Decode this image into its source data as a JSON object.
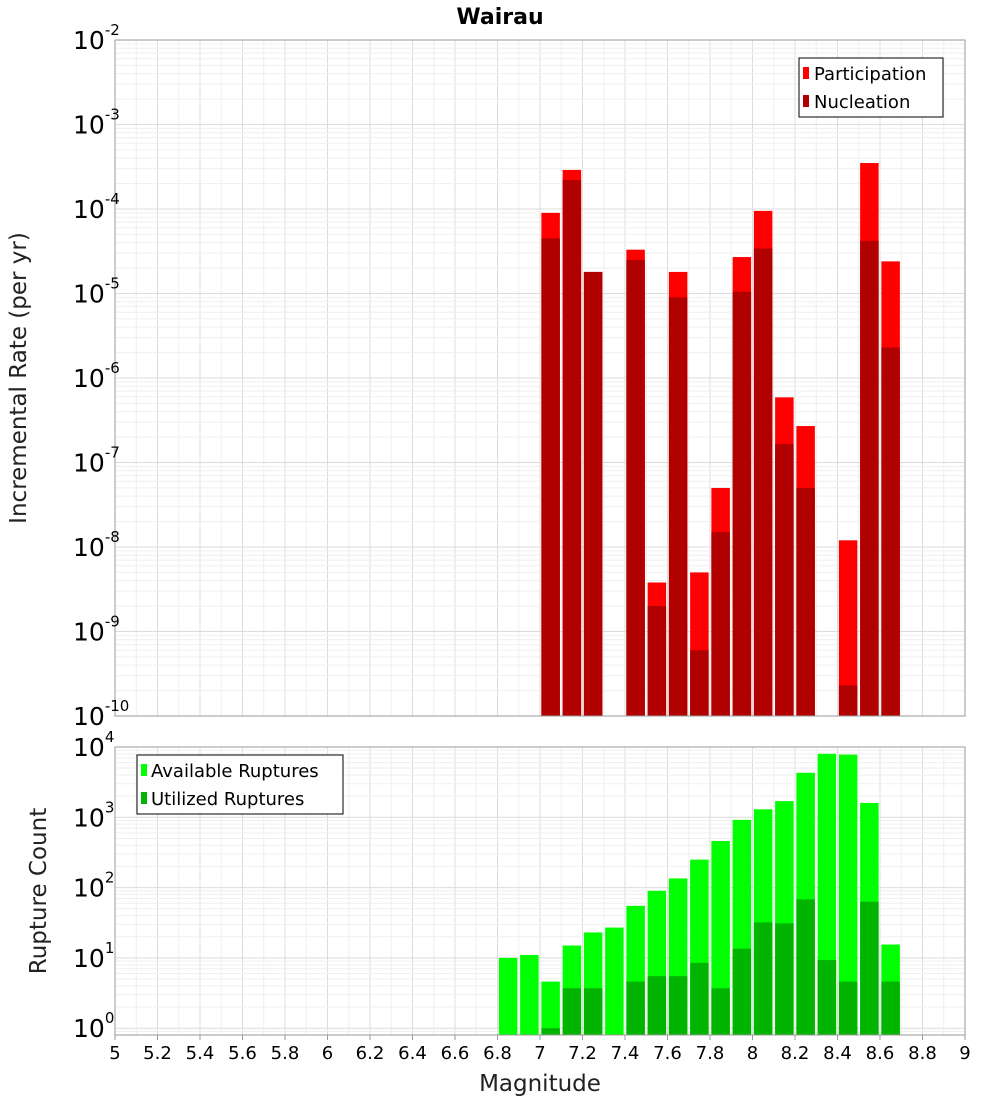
{
  "chart_data": [
    {
      "type": "bar",
      "title": "Wairau",
      "xlabel": "",
      "ylabel": "Incremental Rate (per yr)",
      "yscale": "log",
      "xlim": [
        5,
        9
      ],
      "ylim": [
        1e-10,
        0.01
      ],
      "x": [
        7.05,
        7.15,
        7.25,
        7.35,
        7.45,
        7.55,
        7.65,
        7.75,
        7.85,
        7.95,
        8.05,
        8.15,
        8.25,
        8.35,
        8.45,
        8.55,
        8.65
      ],
      "series": [
        {
          "name": "Participation",
          "color": "#ff0000",
          "values": [
            9e-05,
            0.00029,
            1.8e-05,
            null,
            3.3e-05,
            3.8e-09,
            1.8e-05,
            5e-09,
            5e-08,
            2.7e-05,
            9.5e-05,
            5.9e-07,
            2.7e-07,
            null,
            1.2e-08,
            0.00035,
            2.4e-05
          ]
        },
        {
          "name": "Nucleation",
          "color": "#b00000",
          "values": [
            4.5e-05,
            0.00022,
            1.8e-05,
            null,
            2.5e-05,
            2e-09,
            9e-06,
            6e-10,
            1.5e-08,
            1.05e-05,
            3.4e-05,
            1.65e-07,
            5e-08,
            null,
            2.3e-10,
            4.2e-05,
            2.3e-06
          ]
        }
      ],
      "yticks": [
        {
          "base": "10",
          "exp": "-10"
        },
        {
          "base": "10",
          "exp": "-9"
        },
        {
          "base": "10",
          "exp": "-8"
        },
        {
          "base": "10",
          "exp": "-7"
        },
        {
          "base": "10",
          "exp": "-6"
        },
        {
          "base": "10",
          "exp": "-5"
        },
        {
          "base": "10",
          "exp": "-4"
        },
        {
          "base": "10",
          "exp": "-3"
        },
        {
          "base": "10",
          "exp": "-2"
        }
      ],
      "legend": {
        "placement": "top-right"
      },
      "grid": true
    },
    {
      "type": "bar",
      "xlabel": "Magnitude",
      "ylabel": "Rupture Count",
      "yscale": "log",
      "xlim": [
        5,
        9
      ],
      "ylim": [
        0.8,
        10000
      ],
      "x": [
        6.85,
        6.95,
        7.05,
        7.15,
        7.25,
        7.35,
        7.45,
        7.55,
        7.65,
        7.75,
        7.85,
        7.95,
        8.05,
        8.15,
        8.25,
        8.35,
        8.45,
        8.55,
        8.65
      ],
      "series": [
        {
          "name": "Available Ruptures",
          "color": "#00ff00",
          "values": [
            10,
            11,
            4.6,
            15,
            23,
            27,
            55,
            90,
            135,
            250,
            460,
            920,
            1300,
            1700,
            4300,
            8000,
            7800,
            1600,
            15.5
          ]
        },
        {
          "name": "Utilized Ruptures",
          "color": "#00b400",
          "values": [
            null,
            null,
            1,
            3.7,
            3.7,
            null,
            4.6,
            5.5,
            5.5,
            8.5,
            3.7,
            13.5,
            32,
            31,
            68,
            9.3,
            4.6,
            63,
            4.6
          ]
        }
      ],
      "xticks": [
        "5",
        "5.2",
        "5.4",
        "5.6",
        "5.8",
        "6",
        "6.2",
        "6.4",
        "6.6",
        "6.8",
        "7",
        "7.2",
        "7.4",
        "7.6",
        "7.8",
        "8",
        "8.2",
        "8.4",
        "8.6",
        "8.8",
        "9"
      ],
      "yticks": [
        {
          "base": "10",
          "exp": "0"
        },
        {
          "base": "10",
          "exp": "1"
        },
        {
          "base": "10",
          "exp": "2"
        },
        {
          "base": "10",
          "exp": "3"
        },
        {
          "base": "10",
          "exp": "4"
        }
      ],
      "legend": {
        "placement": "top-left"
      },
      "grid": true
    }
  ]
}
